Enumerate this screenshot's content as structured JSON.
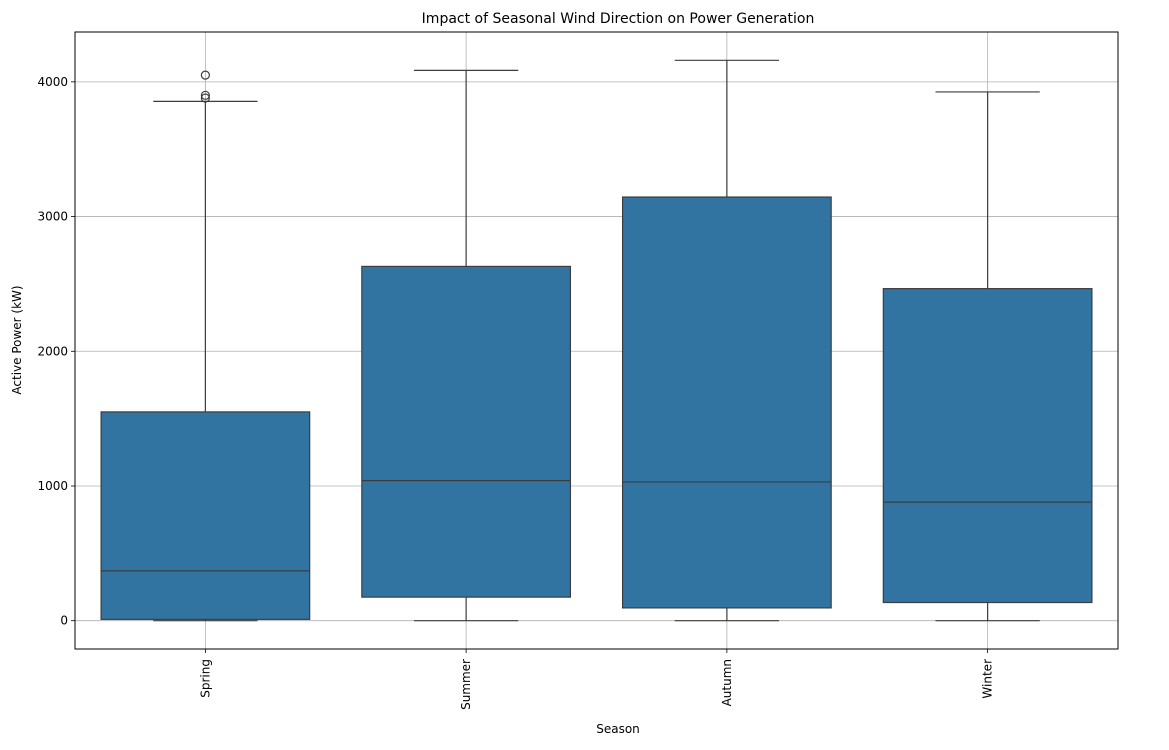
{
  "chart_data": {
    "type": "box",
    "title": "Impact of Seasonal Wind Direction on Power Generation",
    "xlabel": "Season",
    "ylabel": "Active Power (kW)",
    "categories": [
      "Spring",
      "Summer",
      "Autumn",
      "Winter"
    ],
    "boxes": [
      {
        "category": "Spring",
        "whisker_low": 0,
        "q1": 10,
        "median": 370,
        "q3": 1550,
        "whisker_high": 3855,
        "outliers": [
          3880,
          3900,
          4050
        ]
      },
      {
        "category": "Summer",
        "whisker_low": 0,
        "q1": 175,
        "median": 1040,
        "q3": 2630,
        "whisker_high": 4085,
        "outliers": []
      },
      {
        "category": "Autumn",
        "whisker_low": 0,
        "q1": 95,
        "median": 1030,
        "q3": 3145,
        "whisker_high": 4160,
        "outliers": []
      },
      {
        "category": "Winter",
        "whisker_low": 0,
        "q1": 135,
        "median": 880,
        "q3": 2465,
        "whisker_high": 3925,
        "outliers": []
      }
    ],
    "y_ticks": [
      0,
      1000,
      2000,
      3000,
      4000
    ],
    "ylim": [
      -210,
      4370
    ],
    "grid": true,
    "box_color": "#3274a1",
    "line_color": "#3d3d3d"
  }
}
